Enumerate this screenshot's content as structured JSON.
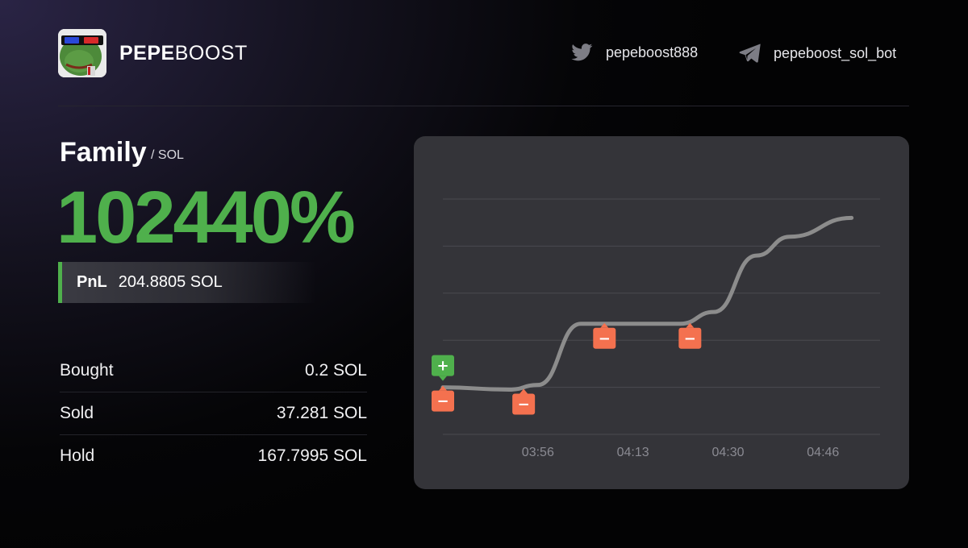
{
  "brand": {
    "name_bold": "PEPE",
    "name_regular": "BOOST",
    "logo_icon": "pepe-frog-3d-glasses-icon"
  },
  "social": {
    "twitter": {
      "icon": "twitter-bird-icon",
      "handle": "pepeboost888"
    },
    "telegram": {
      "icon": "telegram-plane-icon",
      "handle": "pepeboost_sol_bot"
    }
  },
  "token": {
    "name": "Family",
    "quote": "/ SOL"
  },
  "performance": {
    "percent": "102440%",
    "pnl_label": "PnL",
    "pnl_value": "204.8805 SOL"
  },
  "stats": [
    {
      "label": "Bought",
      "value": "0.2 SOL"
    },
    {
      "label": "Sold",
      "value": "37.281 SOL"
    },
    {
      "label": "Hold",
      "value": "167.7995 SOL"
    }
  ],
  "colors": {
    "accent_green": "#4fb04c",
    "sell_orange": "#f4714f",
    "line_gray": "#8c8c8c",
    "card_bg": "#343439"
  },
  "chart_data": {
    "type": "line",
    "x_ticks": [
      "03:56",
      "04:13",
      "04:30",
      "04:46"
    ],
    "ylim": [
      0,
      5
    ],
    "grid": true,
    "series": [
      {
        "x": [
          0.0,
          0.7,
          1.0,
          1.45,
          2.0,
          2.5,
          2.85,
          3.3,
          3.65,
          4.3
        ],
        "y": [
          1.0,
          0.95,
          1.05,
          2.35,
          2.35,
          2.35,
          2.6,
          3.8,
          4.2,
          4.6
        ]
      }
    ],
    "markers": [
      {
        "type": "buy",
        "x": 0.0,
        "y": 1.0,
        "symbol": "+"
      },
      {
        "type": "sell",
        "x": 0.0,
        "y": 1.0,
        "symbol": "−"
      },
      {
        "type": "sell",
        "x": 0.85,
        "y": 0.95,
        "symbol": "−"
      },
      {
        "type": "sell",
        "x": 1.7,
        "y": 2.35,
        "symbol": "−"
      },
      {
        "type": "sell",
        "x": 2.6,
        "y": 2.35,
        "symbol": "−"
      }
    ]
  }
}
